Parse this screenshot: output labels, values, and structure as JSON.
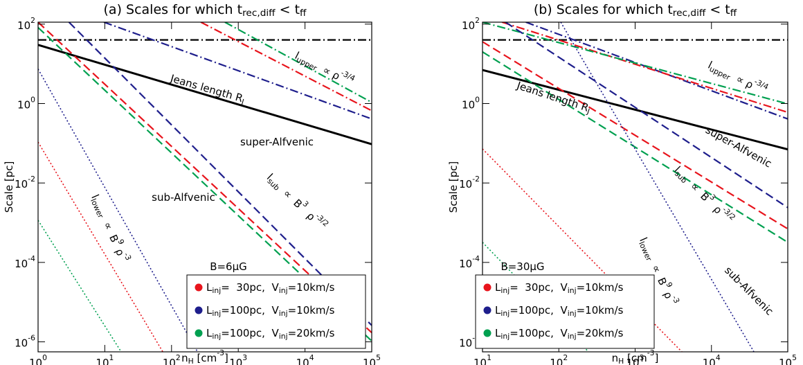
{
  "chart_data": [
    {
      "type": "line",
      "title": [
        "(a) Scales for which t",
        {
          "sub": "rec,diff"
        },
        " < t",
        {
          "sub": "ff"
        }
      ],
      "xlabel": [
        "n",
        {
          "sub": "H"
        },
        " [cm",
        {
          "sup": "-3"
        },
        "]"
      ],
      "ylabel": [
        "Scale [pc]"
      ],
      "log_x": true,
      "log_y": true,
      "xlim": [
        1,
        100000
      ],
      "ylim": [
        5.6e-07,
        112
      ],
      "xticks": [
        {
          "value": 1,
          "label": [
            "10",
            {
              "sup": "0"
            }
          ]
        },
        {
          "value": 10,
          "label": [
            "10",
            {
              "sup": "1"
            }
          ]
        },
        {
          "value": 100,
          "label": [
            "10",
            {
              "sup": "2"
            }
          ]
        },
        {
          "value": 1000,
          "label": [
            "10",
            {
              "sup": "3"
            }
          ]
        },
        {
          "value": 10000,
          "label": [
            "10",
            {
              "sup": "4"
            }
          ]
        },
        {
          "value": 100000,
          "label": [
            "10",
            {
              "sup": "5"
            }
          ]
        }
      ],
      "yticks": [
        {
          "value": 1e-06,
          "label": [
            "10",
            {
              "sup": "-6"
            }
          ]
        },
        {
          "value": 0.0001,
          "label": [
            "10",
            {
              "sup": "-4"
            }
          ]
        },
        {
          "value": 0.01,
          "label": [
            "10",
            {
              "sup": "-2"
            }
          ]
        },
        {
          "value": 1,
          "label": [
            "10",
            {
              "sup": "0"
            }
          ]
        },
        {
          "value": 100,
          "label": [
            "10",
            {
              "sup": "2"
            }
          ]
        }
      ],
      "series": [
        {
          "color": "#000000",
          "style": "dashdot",
          "x": [
            1,
            100000
          ],
          "values": [
            40,
            40
          ]
        },
        {
          "color": "#000000",
          "style": "solid",
          "x": [
            1,
            100000
          ],
          "values": [
            30,
            0.095
          ]
        },
        {
          "color": "#1e1e8c",
          "style": "dashdot",
          "x": [
            9.7,
            100000
          ],
          "values": [
            112,
            0.41
          ]
        },
        {
          "color": "#e8141c",
          "style": "dashdot",
          "x": [
            275,
            100000
          ],
          "values": [
            112,
            0.66
          ]
        },
        {
          "color": "#00a050",
          "style": "dashdot",
          "x": [
            630,
            100000
          ],
          "values": [
            112,
            1.07
          ]
        },
        {
          "color": "#1e1e8c",
          "style": "dashed",
          "x": [
            2.9,
            100000
          ],
          "values": [
            112,
            2.6e-06
          ]
        },
        {
          "color": "#e8141c",
          "style": "dashed",
          "x": [
            1,
            100000
          ],
          "values": [
            112,
            1.7e-06
          ]
        },
        {
          "color": "#00a050",
          "style": "dashed",
          "x": [
            1,
            100000
          ],
          "values": [
            82,
            1.05e-06
          ]
        },
        {
          "color": "#1e1e8c",
          "style": "dotted",
          "x": [
            1,
            245
          ],
          "values": [
            7.4,
            5.6e-07
          ]
        },
        {
          "color": "#e8141c",
          "style": "dotted",
          "x": [
            1,
            74
          ],
          "values": [
            0.107,
            5.6e-07
          ]
        },
        {
          "color": "#00a050",
          "style": "dotted",
          "x": [
            1,
            17.6
          ],
          "values": [
            0.00115,
            5.6e-07
          ]
        }
      ],
      "annotations": [
        {
          "text": [
            "Jeans length R",
            {
              "sub": "J"
            }
          ]
        },
        {
          "text": [
            "super-Alfvenic"
          ]
        },
        {
          "text": [
            "sub-Alfvenic"
          ]
        },
        {
          "text": [
            "l",
            {
              "sub": "upper"
            },
            "  ∝ ρ",
            {
              "sup": "-3/4"
            }
          ]
        },
        {
          "text": [
            "l",
            {
              "sub": "sub"
            },
            "  ∝  B",
            {
              "sup": "3"
            },
            "  ρ",
            {
              "sup": "-3/2"
            }
          ]
        },
        {
          "text": [
            "l",
            {
              "sub": "lower"
            },
            "  ∝  B",
            {
              "sup": "9"
            },
            " ρ",
            {
              "sup": "-3"
            }
          ]
        },
        {
          "text": [
            "B=6μG"
          ]
        }
      ],
      "legend": {
        "corner": "lower right",
        "entries": [
          {
            "color": "#e8141c",
            "label": [
              "L",
              {
                "sub": "inj"
              },
              "=  30pc,  V",
              {
                "sub": "inj"
              },
              "=10km/s"
            ]
          },
          {
            "color": "#1e1e8c",
            "label": [
              "L",
              {
                "sub": "inj"
              },
              "=100pc,  V",
              {
                "sub": "inj"
              },
              "=10km/s"
            ]
          },
          {
            "color": "#00a050",
            "label": [
              "L",
              {
                "sub": "inj"
              },
              "=100pc,  V",
              {
                "sub": "inj"
              },
              "=20km/s"
            ]
          }
        ]
      }
    },
    {
      "type": "line",
      "title": [
        "(b) Scales for which t",
        {
          "sub": "rec,diff"
        },
        " < t",
        {
          "sub": "ff"
        }
      ],
      "xlabel": [
        "n",
        {
          "sub": "H"
        },
        " [cm",
        {
          "sup": "-3"
        },
        "]"
      ],
      "ylabel": [
        "Scale [pc]"
      ],
      "log_x": true,
      "log_y": true,
      "xlim": [
        10,
        100000
      ],
      "ylim": [
        5.6e-07,
        112
      ],
      "xticks": [
        {
          "value": 10,
          "label": [
            "10",
            {
              "sup": "1"
            }
          ]
        },
        {
          "value": 100,
          "label": [
            "10",
            {
              "sup": "2"
            }
          ]
        },
        {
          "value": 1000,
          "label": [
            "10",
            {
              "sup": "3"
            }
          ]
        },
        {
          "value": 10000,
          "label": [
            "10",
            {
              "sup": "4"
            }
          ]
        },
        {
          "value": 100000,
          "label": [
            "10",
            {
              "sup": "5"
            }
          ]
        }
      ],
      "yticks": [
        {
          "value": 1e-06,
          "label": [
            "10",
            {
              "sup": "-6"
            }
          ]
        },
        {
          "value": 0.0001,
          "label": [
            "10",
            {
              "sup": "-4"
            }
          ]
        },
        {
          "value": 0.01,
          "label": [
            "10",
            {
              "sup": "-2"
            }
          ]
        },
        {
          "value": 1,
          "label": [
            "10",
            {
              "sup": "0"
            }
          ]
        },
        {
          "value": 100,
          "label": [
            "10",
            {
              "sup": "2"
            }
          ]
        }
      ],
      "series": [
        {
          "color": "#000000",
          "style": "dashdot",
          "x": [
            10,
            100000
          ],
          "values": [
            40,
            40
          ]
        },
        {
          "color": "#000000",
          "style": "solid",
          "x": [
            10,
            100000
          ],
          "values": [
            7,
            0.07
          ]
        },
        {
          "color": "#1e1e8c",
          "style": "dashdot",
          "x": [
            37,
            100000
          ],
          "values": [
            112,
            0.41
          ]
        },
        {
          "color": "#e8141c",
          "style": "dashdot",
          "x": [
            18,
            100000
          ],
          "values": [
            112,
            0.6
          ]
        },
        {
          "color": "#00a050",
          "style": "dashdot",
          "x": [
            10,
            100000
          ],
          "values": [
            112,
            0.98
          ]
        },
        {
          "color": "#1e1e8c",
          "style": "dashed",
          "x": [
            20,
            100000
          ],
          "values": [
            112,
            0.0024
          ]
        },
        {
          "color": "#e8141c",
          "style": "dashed",
          "x": [
            10,
            100000
          ],
          "values": [
            36,
            0.0007
          ]
        },
        {
          "color": "#00a050",
          "style": "dashed",
          "x": [
            10,
            100000
          ],
          "values": [
            20,
            0.00032
          ]
        },
        {
          "color": "#1e1e8c",
          "style": "dotted",
          "x": [
            106,
            36000
          ],
          "values": [
            112,
            5.6e-07
          ]
        },
        {
          "color": "#e8141c",
          "style": "dotted",
          "x": [
            10,
            4100
          ],
          "values": [
            0.072,
            5.6e-07
          ]
        },
        {
          "color": "#00a050",
          "style": "dotted",
          "x": [
            10,
            245
          ],
          "values": [
            0.00032,
            5.6e-07
          ]
        }
      ],
      "annotations": [
        {
          "text": [
            "Jeans length R",
            {
              "sub": "J"
            }
          ]
        },
        {
          "text": [
            "super-Alfvenic"
          ]
        },
        {
          "text": [
            "sub-Alfvenic"
          ]
        },
        {
          "text": [
            "l",
            {
              "sub": "upper"
            },
            "  ∝ ρ",
            {
              "sup": "-3/4"
            }
          ]
        },
        {
          "text": [
            "l",
            {
              "sub": "sub"
            },
            "  ∝  B",
            {
              "sup": "3"
            },
            "  ρ",
            {
              "sup": "-3/2"
            }
          ]
        },
        {
          "text": [
            "l",
            {
              "sub": "lower"
            },
            "  ∝  B",
            {
              "sup": "9"
            },
            " ρ",
            {
              "sup": "-3"
            }
          ]
        },
        {
          "text": [
            "B=30μG"
          ]
        }
      ],
      "legend": {
        "corner": "lower left",
        "entries": [
          {
            "color": "#e8141c",
            "label": [
              "L",
              {
                "sub": "inj"
              },
              "=  30pc,  V",
              {
                "sub": "inj"
              },
              "=10km/s"
            ]
          },
          {
            "color": "#1e1e8c",
            "label": [
              "L",
              {
                "sub": "inj"
              },
              "=100pc,  V",
              {
                "sub": "inj"
              },
              "=10km/s"
            ]
          },
          {
            "color": "#00a050",
            "label": [
              "L",
              {
                "sub": "inj"
              },
              "=100pc,  V",
              {
                "sub": "inj"
              },
              "=20km/s"
            ]
          }
        ]
      }
    }
  ]
}
